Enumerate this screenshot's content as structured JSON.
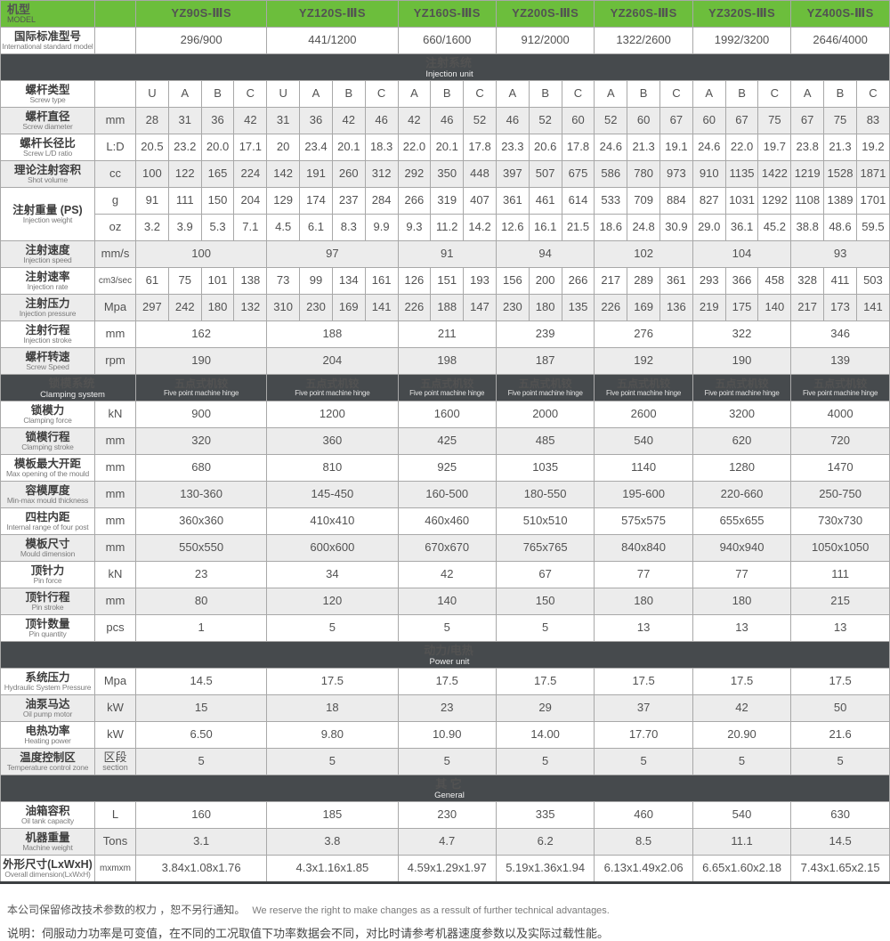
{
  "colors": {
    "accent_green": "#6cbe3c",
    "section_dark": "#464a4d",
    "row_shade": "#ececec"
  },
  "table": {
    "machine_spans": [
      4,
      4,
      3,
      3,
      3,
      3,
      3
    ],
    "model_header": {
      "label_cn": "机型",
      "label_en": "MODEL"
    },
    "models": [
      "YZ90S-ⅢS",
      "YZ120S-ⅢS",
      "YZ160S-ⅢS",
      "YZ200S-ⅢS",
      "YZ260S-ⅢS",
      "YZ320S-ⅢS",
      "YZ400S-ⅢS"
    ],
    "intl_standard": {
      "label_cn": "国际标准型号",
      "label_en": "International standard model",
      "values": [
        "296/900",
        "441/1200",
        "660/1600",
        "912/2000",
        "1322/2600",
        "1992/3200",
        "2646/4000"
      ]
    },
    "sections": [
      {
        "title_cn": "注射系统",
        "title_en": "Injection unit",
        "type": "bar",
        "rows": [
          {
            "label_cn": "螺杆类型",
            "label_en": "Screw type",
            "unit": "",
            "merged": false,
            "shade": false,
            "values": [
              [
                "U",
                "A",
                "B",
                "C"
              ],
              [
                "U",
                "A",
                "B",
                "C"
              ],
              [
                "A",
                "B",
                "C"
              ],
              [
                "A",
                "B",
                "C"
              ],
              [
                "A",
                "B",
                "C"
              ],
              [
                "A",
                "B",
                "C"
              ],
              [
                "A",
                "B",
                "C"
              ]
            ]
          },
          {
            "label_cn": "螺杆直径",
            "label_en": "Screw diameter",
            "unit": "mm",
            "merged": false,
            "shade": true,
            "values": [
              [
                "28",
                "31",
                "36",
                "42"
              ],
              [
                "31",
                "36",
                "42",
                "46"
              ],
              [
                "42",
                "46",
                "52"
              ],
              [
                "46",
                "52",
                "60"
              ],
              [
                "52",
                "60",
                "67"
              ],
              [
                "60",
                "67",
                "75"
              ],
              [
                "67",
                "75",
                "83"
              ]
            ]
          },
          {
            "label_cn": "螺杆长径比",
            "label_en": "Screw L/D ratio",
            "unit": "L:D",
            "merged": false,
            "shade": false,
            "values": [
              [
                "20.5",
                "23.2",
                "20.0",
                "17.1"
              ],
              [
                "20",
                "23.4",
                "20.1",
                "18.3"
              ],
              [
                "22.0",
                "20.1",
                "17.8"
              ],
              [
                "23.3",
                "20.6",
                "17.8"
              ],
              [
                "24.6",
                "21.3",
                "19.1"
              ],
              [
                "24.6",
                "22.0",
                "19.7"
              ],
              [
                "23.8",
                "21.3",
                "19.2"
              ]
            ]
          },
          {
            "label_cn": "理论注射容积",
            "label_en": "Shot volume",
            "unit": "cc",
            "merged": false,
            "shade": true,
            "values": [
              [
                "100",
                "122",
                "165",
                "224"
              ],
              [
                "142",
                "191",
                "260",
                "312"
              ],
              [
                "292",
                "350",
                "448"
              ],
              [
                "397",
                "507",
                "675"
              ],
              [
                "586",
                "780",
                "973"
              ],
              [
                "910",
                "1135",
                "1422"
              ],
              [
                "1219",
                "1528",
                "1871"
              ]
            ]
          },
          {
            "label_cn": "注射重量 (PS)",
            "label_en": "Injection weight",
            "shade": false,
            "subrows": [
              {
                "unit": "g",
                "values": [
                  [
                    "91",
                    "111",
                    "150",
                    "204"
                  ],
                  [
                    "129",
                    "174",
                    "237",
                    "284"
                  ],
                  [
                    "266",
                    "319",
                    "407"
                  ],
                  [
                    "361",
                    "461",
                    "614"
                  ],
                  [
                    "533",
                    "709",
                    "884"
                  ],
                  [
                    "827",
                    "1031",
                    "1292"
                  ],
                  [
                    "1108",
                    "1389",
                    "1701"
                  ]
                ]
              },
              {
                "unit": "oz",
                "values": [
                  [
                    "3.2",
                    "3.9",
                    "5.3",
                    "7.1"
                  ],
                  [
                    "4.5",
                    "6.1",
                    "8.3",
                    "9.9"
                  ],
                  [
                    "9.3",
                    "11.2",
                    "14.2"
                  ],
                  [
                    "12.6",
                    "16.1",
                    "21.5"
                  ],
                  [
                    "18.6",
                    "24.8",
                    "30.9"
                  ],
                  [
                    "29.0",
                    "36.1",
                    "45.2"
                  ],
                  [
                    "38.8",
                    "48.6",
                    "59.5"
                  ]
                ]
              }
            ]
          },
          {
            "label_cn": "注射速度",
            "label_en": "Injection speed",
            "unit": "mm/s",
            "merged": true,
            "shade": true,
            "values": [
              "100",
              "97",
              "91",
              "94",
              "102",
              "104",
              "93"
            ]
          },
          {
            "label_cn": "注射速率",
            "label_en": "Injection rate",
            "unit": "cm3/sec",
            "merged": false,
            "shade": false,
            "values": [
              [
                "61",
                "75",
                "101",
                "138"
              ],
              [
                "73",
                "99",
                "134",
                "161"
              ],
              [
                "126",
                "151",
                "193"
              ],
              [
                "156",
                "200",
                "266"
              ],
              [
                "217",
                "289",
                "361"
              ],
              [
                "293",
                "366",
                "458"
              ],
              [
                "328",
                "411",
                "503"
              ]
            ]
          },
          {
            "label_cn": "注射压力",
            "label_en": "Injection pressure",
            "unit": "Mpa",
            "merged": false,
            "shade": true,
            "values": [
              [
                "297",
                "242",
                "180",
                "132"
              ],
              [
                "310",
                "230",
                "169",
                "141"
              ],
              [
                "226",
                "188",
                "147"
              ],
              [
                "230",
                "180",
                "135"
              ],
              [
                "226",
                "169",
                "136"
              ],
              [
                "219",
                "175",
                "140"
              ],
              [
                "217",
                "173",
                "141"
              ]
            ]
          },
          {
            "label_cn": "注射行程",
            "label_en": "Injection stroke",
            "unit": "mm",
            "merged": true,
            "shade": false,
            "values": [
              "162",
              "188",
              "211",
              "239",
              "276",
              "322",
              "346"
            ]
          },
          {
            "label_cn": "螺杆转速",
            "label_en": "Screw Speed",
            "unit": "rpm",
            "merged": true,
            "shade": true,
            "values": [
              "190",
              "204",
              "198",
              "187",
              "192",
              "190",
              "139"
            ]
          }
        ]
      },
      {
        "title_cn": "锁模系统",
        "title_en": "Clamping system",
        "type": "hinge",
        "hinge_cn": "五点式机铰",
        "hinge_en": "Five point machine hinge",
        "rows": [
          {
            "label_cn": "锁模力",
            "label_en": "Clamping force",
            "unit": "kN",
            "merged": true,
            "shade": false,
            "values": [
              "900",
              "1200",
              "1600",
              "2000",
              "2600",
              "3200",
              "4000"
            ]
          },
          {
            "label_cn": "锁模行程",
            "label_en": "Clamping stroke",
            "unit": "mm",
            "merged": true,
            "shade": true,
            "values": [
              "320",
              "360",
              "425",
              "485",
              "540",
              "620",
              "720"
            ]
          },
          {
            "label_cn": "模板最大开距",
            "label_en": "Max opening of the mould",
            "unit": "mm",
            "merged": true,
            "shade": false,
            "values": [
              "680",
              "810",
              "925",
              "1035",
              "1140",
              "1280",
              "1470"
            ]
          },
          {
            "label_cn": "容模厚度",
            "label_en": "Min-max mould thickness",
            "unit": "mm",
            "merged": true,
            "shade": true,
            "values": [
              "130-360",
              "145-450",
              "160-500",
              "180-550",
              "195-600",
              "220-660",
              "250-750"
            ]
          },
          {
            "label_cn": "四柱内距",
            "label_en": "Internal range of four post",
            "unit": "mm",
            "merged": true,
            "shade": false,
            "values": [
              "360x360",
              "410x410",
              "460x460",
              "510x510",
              "575x575",
              "655x655",
              "730x730"
            ]
          },
          {
            "label_cn": "模板尺寸",
            "label_en": "Mould dimension",
            "unit": "mm",
            "merged": true,
            "shade": true,
            "values": [
              "550x550",
              "600x600",
              "670x670",
              "765x765",
              "840x840",
              "940x940",
              "1050x1050"
            ]
          },
          {
            "label_cn": "顶针力",
            "label_en": "Pin force",
            "unit": "kN",
            "merged": true,
            "shade": false,
            "values": [
              "23",
              "34",
              "42",
              "67",
              "77",
              "77",
              "111"
            ]
          },
          {
            "label_cn": "顶针行程",
            "label_en": "Pin stroke",
            "unit": "mm",
            "merged": true,
            "shade": true,
            "values": [
              "80",
              "120",
              "140",
              "150",
              "180",
              "180",
              "215"
            ]
          },
          {
            "label_cn": "顶针数量",
            "label_en": "Pin quantity",
            "unit": "pcs",
            "merged": true,
            "shade": false,
            "values": [
              "1",
              "5",
              "5",
              "5",
              "13",
              "13",
              "13"
            ]
          }
        ]
      },
      {
        "title_cn": "动力/电热",
        "title_en": "Power unit",
        "type": "bar",
        "rows": [
          {
            "label_cn": "系统压力",
            "label_en": "Hydraulic System Pressure",
            "unit": "Mpa",
            "merged": true,
            "shade": false,
            "values": [
              "14.5",
              "17.5",
              "17.5",
              "17.5",
              "17.5",
              "17.5",
              "17.5"
            ]
          },
          {
            "label_cn": "油泵马达",
            "label_en": "Oil pump motor",
            "unit": "kW",
            "merged": true,
            "shade": true,
            "values": [
              "15",
              "18",
              "23",
              "29",
              "37",
              "42",
              "50"
            ]
          },
          {
            "label_cn": "电热功率",
            "label_en": "Heating power",
            "unit": "kW",
            "merged": true,
            "shade": false,
            "values": [
              "6.50",
              "9.80",
              "10.90",
              "14.00",
              "17.70",
              "20.90",
              "21.6"
            ]
          },
          {
            "label_cn": "温度控制区",
            "label_en": "Temperature control zone",
            "unit": "区段",
            "unit2": "section",
            "merged": true,
            "shade": true,
            "values": [
              "5",
              "5",
              "5",
              "5",
              "5",
              "5",
              "5"
            ]
          }
        ]
      },
      {
        "title_cn": "其 它",
        "title_en": "General",
        "type": "bar",
        "rows": [
          {
            "label_cn": "油箱容积",
            "label_en": "Oil tank capacity",
            "unit": "L",
            "merged": true,
            "shade": false,
            "values": [
              "160",
              "185",
              "230",
              "335",
              "460",
              "540",
              "630"
            ]
          },
          {
            "label_cn": "机器重量",
            "label_en": "Machine weight",
            "unit": "Tons",
            "merged": true,
            "shade": true,
            "values": [
              "3.1",
              "3.8",
              "4.7",
              "6.2",
              "8.5",
              "11.1",
              "14.5"
            ]
          },
          {
            "label_cn": "外形尺寸(LxWxH)",
            "label_en": "Overall dimension(LxWxH)",
            "unit": "mxmxm",
            "merged": true,
            "shade": false,
            "tall": true,
            "values": [
              "3.84x1.08x1.76",
              "4.3x1.16x1.85",
              "4.59x1.29x1.97",
              "5.19x1.36x1.94",
              "6.13x1.49x2.06",
              "6.65x1.60x2.18",
              "7.43x1.65x2.15"
            ]
          }
        ]
      }
    ]
  },
  "footer": {
    "line1_cn": "本公司保留修改技术参数的权力 ，恕不另行通知。",
    "line1_en": "We reserve the right to make changes as a ressult of further technical advantages.",
    "line2": "说明：伺服动力功率是可变值，在不同的工况取值下功率数据会不同，对比时请参考机器速度参数以及实际过载性能。"
  }
}
